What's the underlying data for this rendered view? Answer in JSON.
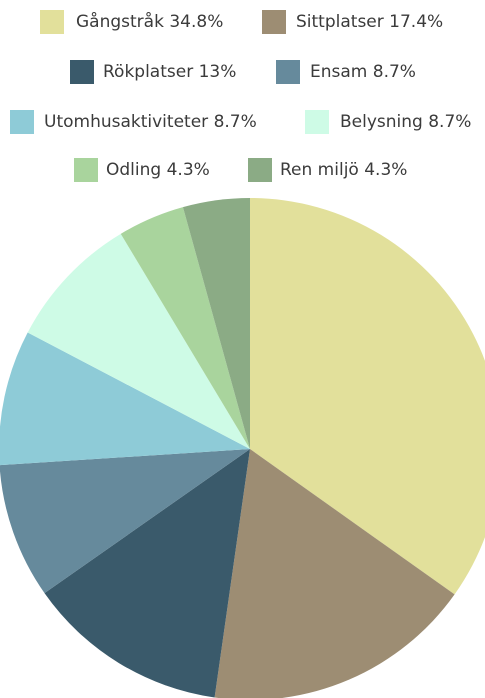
{
  "chart_data": {
    "type": "pie",
    "categories": [
      "Gångstråk",
      "Sittplatser",
      "Rökplatser",
      "Ensam",
      "Utomhusaktiviteter",
      "Belysning",
      "Odling",
      "Ren miljö"
    ],
    "values": [
      34.8,
      17.4,
      13,
      8.7,
      8.7,
      8.7,
      4.3,
      4.3
    ],
    "value_labels": [
      "34.8%",
      "17.4%",
      "13%",
      "8.7%",
      "8.7%",
      "8.7%",
      "4.3%",
      "4.3%"
    ],
    "colors": [
      "#e2e09b",
      "#9d8d73",
      "#3a5a6b",
      "#668a9c",
      "#8ecbd7",
      "#cefbe6",
      "#a9d49d",
      "#8bab85"
    ],
    "legend": "top"
  }
}
